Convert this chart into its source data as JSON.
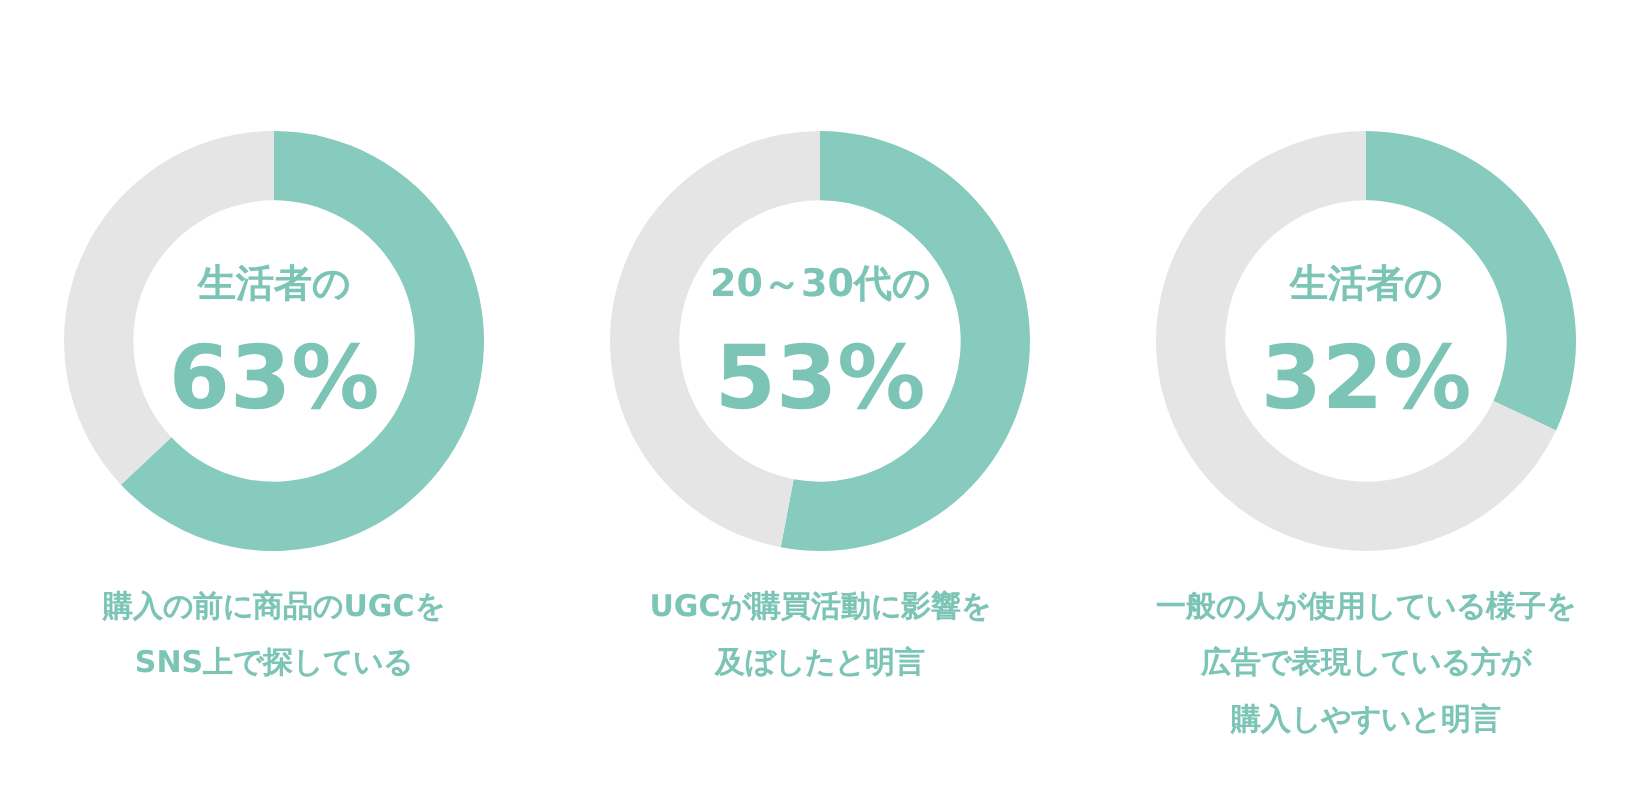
{
  "chart_data": [
    {
      "type": "donut",
      "title": "生活者の",
      "subtitle": "63%",
      "categories": [
        null,
        null
      ],
      "values": [
        63,
        37
      ],
      "colors": [
        "#86cbbd",
        "#e5e5e5"
      ],
      "annotations": [
        "購入の前に商品のUGCを",
        "SNS上で探している"
      ]
    },
    {
      "type": "donut",
      "title": "20～30代の",
      "subtitle": "53%",
      "categories": [
        null,
        null
      ],
      "values": [
        53,
        47
      ],
      "colors": [
        "#86cbbd",
        "#e5e5e5"
      ],
      "annotations": [
        "UGCが購買活動に影響を",
        "及ぼしたと明言"
      ]
    },
    {
      "type": "donut",
      "title": "生活者の",
      "subtitle": "32%",
      "categories": [
        null,
        null
      ],
      "values": [
        32,
        68
      ],
      "colors": [
        "#86cbbd",
        "#e5e5e5"
      ],
      "annotations": [
        "一般の人が使用している様子を",
        "広告で表現している方が",
        "購入しやすいと明言"
      ]
    }
  ]
}
